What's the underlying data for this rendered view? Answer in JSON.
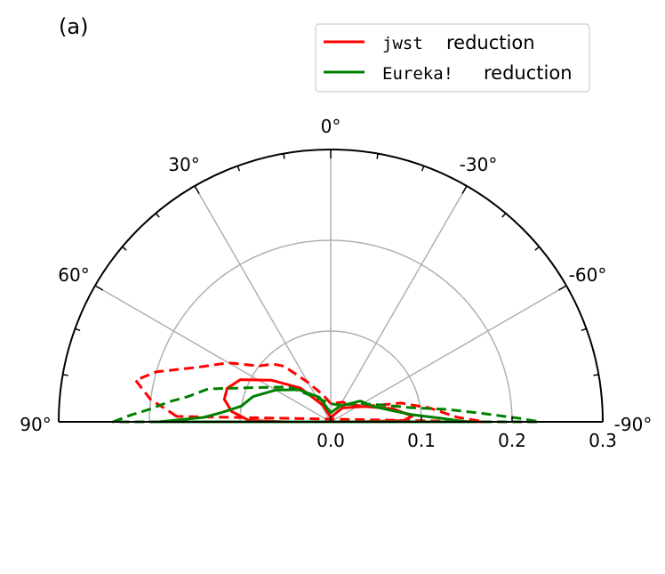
{
  "chart_data": {
    "type": "polar-contour",
    "panel_label": "(a)",
    "angle_unit": "°",
    "theta_ticks": [
      "90°",
      "60°",
      "30°",
      "0°",
      "-30°",
      "-60°",
      "-90°"
    ],
    "radial_ticks": [
      "0.0",
      "0.1",
      "0.2",
      "0.3"
    ],
    "rlim": [
      0,
      0.3
    ],
    "grid": true,
    "legend_position": "top-right",
    "legend": [
      {
        "code": "jwst",
        "label": "reduction",
        "color": "#ff0000"
      },
      {
        "code": "Eureka!",
        "label": "reduction",
        "color": "#008000"
      }
    ],
    "series": [
      {
        "name": "jwst reduction",
        "color": "#ff0000",
        "level": "inner",
        "style": "solid",
        "points": [
          [
            89,
            0.09
          ],
          [
            84,
            0.11
          ],
          [
            78,
            0.12
          ],
          [
            72,
            0.12
          ],
          [
            65,
            0.11
          ],
          [
            55,
            0.08
          ],
          [
            42,
            0.05
          ],
          [
            25,
            0.02
          ],
          [
            0,
            0.005
          ],
          [
            -40,
            0.02
          ],
          [
            -65,
            0.04
          ],
          [
            -78,
            0.07
          ],
          [
            -86,
            0.09
          ],
          [
            -89,
            0.08
          ],
          [
            -90,
            0.03
          ],
          [
            -90,
            0.0
          ],
          [
            90,
            0.0
          ],
          [
            90,
            0.05
          ]
        ]
      },
      {
        "name": "jwst reduction",
        "color": "#ff0000",
        "level": "outer",
        "style": "dashed",
        "points": [
          [
            88,
            0.17
          ],
          [
            86,
            0.18
          ],
          [
            83,
            0.2
          ],
          [
            78,
            0.22
          ],
          [
            74,
            0.2
          ],
          [
            68,
            0.16
          ],
          [
            60,
            0.13
          ],
          [
            52,
            0.1
          ],
          [
            45,
            0.09
          ],
          [
            40,
            0.08
          ],
          [
            30,
            0.05
          ],
          [
            15,
            0.03
          ],
          [
            0,
            0.02
          ],
          [
            -30,
            0.025
          ],
          [
            -50,
            0.03
          ],
          [
            -65,
            0.04
          ],
          [
            -75,
            0.08
          ],
          [
            -82,
            0.11
          ],
          [
            -88,
            0.14
          ],
          [
            -90,
            0.17
          ]
        ]
      },
      {
        "name": "Eureka! reduction",
        "color": "#008000",
        "level": "inner",
        "style": "solid",
        "points": [
          [
            90,
            0.19
          ],
          [
            88,
            0.14
          ],
          [
            85,
            0.12
          ],
          [
            80,
            0.1
          ],
          [
            72,
            0.09
          ],
          [
            60,
            0.07
          ],
          [
            45,
            0.05
          ],
          [
            25,
            0.03
          ],
          [
            0,
            0.01
          ],
          [
            -30,
            0.02
          ],
          [
            -55,
            0.04
          ],
          [
            -70,
            0.05
          ],
          [
            -80,
            0.07
          ],
          [
            -85,
            0.09
          ],
          [
            -88,
            0.12
          ],
          [
            -90,
            0.15
          ]
        ]
      },
      {
        "name": "Eureka! reduction",
        "color": "#008000",
        "level": "outer",
        "style": "dashed",
        "points": [
          [
            90,
            0.24
          ],
          [
            88,
            0.22
          ],
          [
            86,
            0.2
          ],
          [
            83,
            0.18
          ],
          [
            80,
            0.16
          ],
          [
            75,
            0.14
          ],
          [
            68,
            0.1
          ],
          [
            50,
            0.06
          ],
          [
            20,
            0.025
          ],
          [
            0,
            0.02
          ],
          [
            -20,
            0.02
          ],
          [
            -40,
            0.025
          ],
          [
            -60,
            0.04
          ],
          [
            -72,
            0.06
          ],
          [
            -80,
            0.09
          ],
          [
            -84,
            0.13
          ],
          [
            -87,
            0.17
          ],
          [
            -89,
            0.21
          ],
          [
            -90,
            0.23
          ]
        ]
      }
    ]
  }
}
